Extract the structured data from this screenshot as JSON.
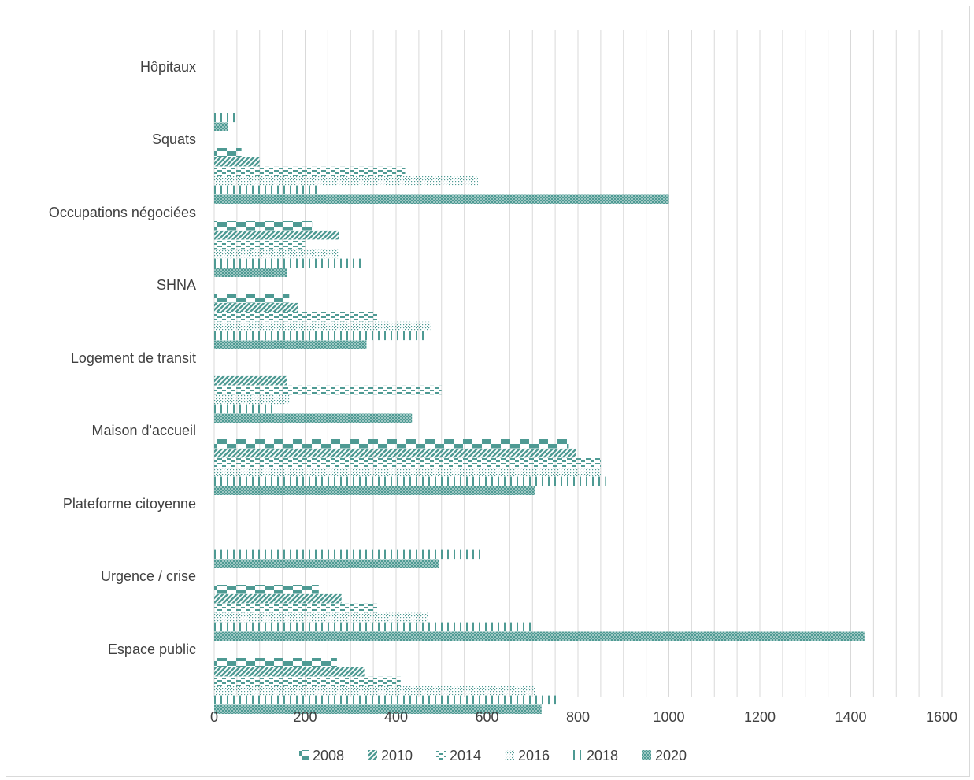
{
  "colors": {
    "series": "#4e9a93",
    "grid": "#d9d9d9"
  },
  "chart_data": {
    "type": "bar",
    "orientation": "horizontal",
    "categories": [
      "Hôpitaux",
      "Squats",
      "Occupations négociées",
      "SHNA",
      "Logement de transit",
      "Maison d'accueil",
      "Plateforme citoyenne",
      "Urgence / crise",
      "Espace public"
    ],
    "series": [
      {
        "name": "2008",
        "pattern": "checker",
        "values": [
          0,
          60,
          215,
          165,
          0,
          780,
          0,
          230,
          270
        ]
      },
      {
        "name": "2010",
        "pattern": "diagonal",
        "values": [
          0,
          100,
          275,
          185,
          160,
          795,
          0,
          280,
          330
        ]
      },
      {
        "name": "2014",
        "pattern": "dashes",
        "values": [
          0,
          420,
          200,
          360,
          500,
          850,
          0,
          360,
          410
        ]
      },
      {
        "name": "2016",
        "pattern": "dots",
        "values": [
          0,
          580,
          275,
          475,
          165,
          850,
          0,
          470,
          705
        ]
      },
      {
        "name": "2018",
        "pattern": "vlines",
        "values": [
          55,
          230,
          330,
          470,
          130,
          860,
          595,
          700,
          760
        ]
      },
      {
        "name": "2020",
        "pattern": "dense",
        "values": [
          30,
          1000,
          160,
          335,
          435,
          705,
          495,
          1430,
          720
        ]
      }
    ],
    "xlim": [
      0,
      1600
    ],
    "xticks": [
      0,
      200,
      400,
      600,
      800,
      1000,
      1200,
      1400,
      1600
    ],
    "grid": true,
    "legend": "bottom"
  }
}
